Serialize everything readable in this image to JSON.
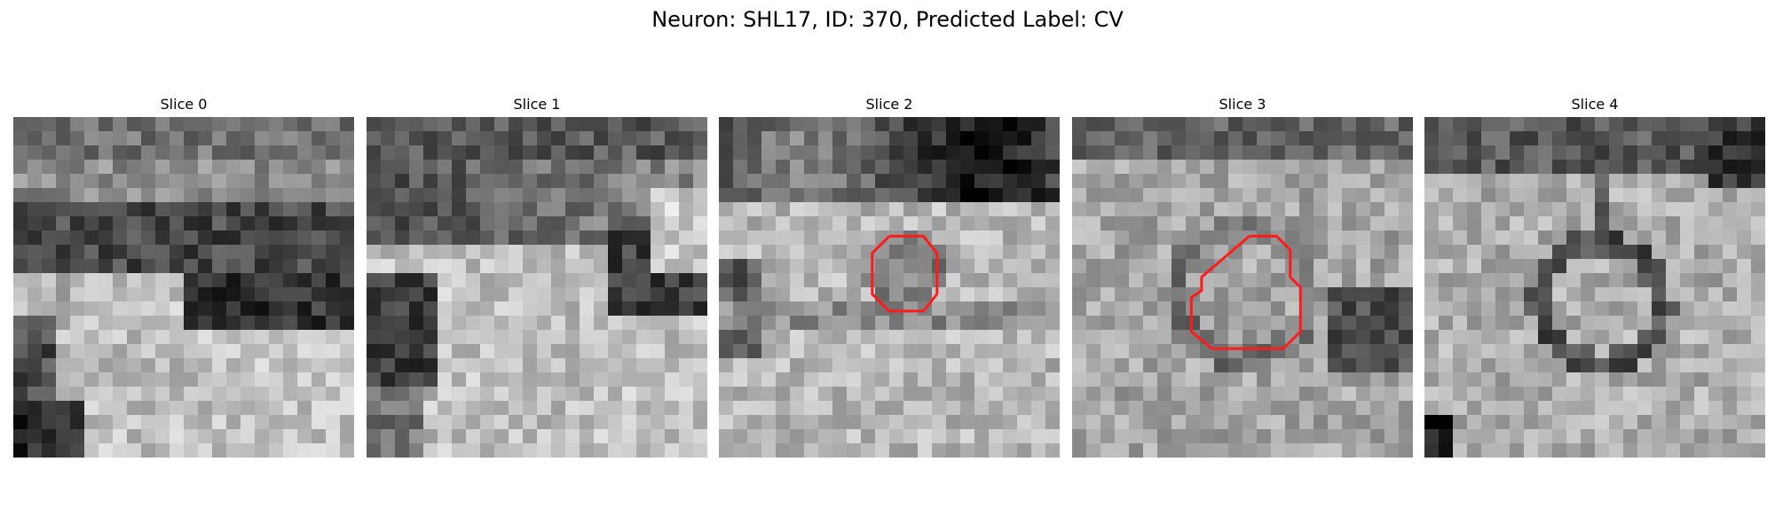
{
  "figure": {
    "title": "Neuron: SHL17, ID: 370, Predicted Label: CV"
  },
  "slices": [
    {
      "title": "Slice 0",
      "seed": 11,
      "pattern": "band-low",
      "contour": null
    },
    {
      "title": "Slice 1",
      "seed": 23,
      "pattern": "band-top-diag",
      "contour": null
    },
    {
      "title": "Slice 2",
      "seed": 37,
      "pattern": "bright-center",
      "contour": [
        [
          0.5,
          0.35
        ],
        [
          0.6,
          0.35
        ],
        [
          0.64,
          0.4
        ],
        [
          0.64,
          0.52
        ],
        [
          0.6,
          0.57
        ],
        [
          0.5,
          0.57
        ],
        [
          0.45,
          0.52
        ],
        [
          0.45,
          0.4
        ],
        [
          0.5,
          0.35
        ]
      ]
    },
    {
      "title": "Slice 3",
      "seed": 53,
      "pattern": "speckle-ring",
      "contour": [
        [
          0.52,
          0.35
        ],
        [
          0.6,
          0.35
        ],
        [
          0.64,
          0.39
        ],
        [
          0.64,
          0.47
        ],
        [
          0.67,
          0.5
        ],
        [
          0.67,
          0.63
        ],
        [
          0.62,
          0.68
        ],
        [
          0.41,
          0.68
        ],
        [
          0.35,
          0.63
        ],
        [
          0.35,
          0.53
        ],
        [
          0.38,
          0.51
        ],
        [
          0.38,
          0.47
        ],
        [
          0.52,
          0.35
        ]
      ]
    },
    {
      "title": "Slice 4",
      "seed": 71,
      "pattern": "dark-ring",
      "contour": null
    }
  ],
  "colors": {
    "contour": "#ff1a1a"
  }
}
